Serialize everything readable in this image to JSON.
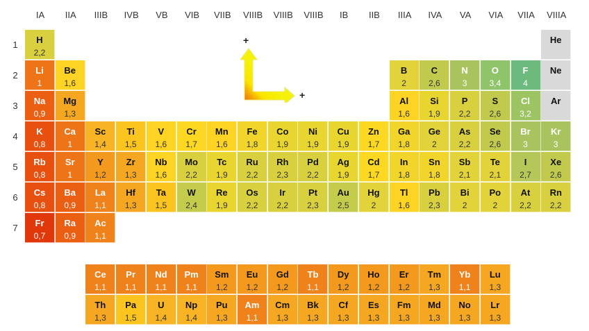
{
  "groups": [
    "IA",
    "IIA",
    "IIIB",
    "IVB",
    "VB",
    "VIB",
    "VIIB",
    "VIIIB",
    "VIIIB",
    "VIIIB",
    "IB",
    "IIB",
    "IIIA",
    "IVA",
    "VA",
    "VIA",
    "VIIA",
    "VIIIA"
  ],
  "periods": [
    "1",
    "2",
    "3",
    "4",
    "5",
    "6",
    "7"
  ],
  "legend": {
    "plus_up": "+",
    "plus_right": "+"
  },
  "elements": [
    {
      "s": "H",
      "v": "2,2",
      "g": 1,
      "p": 1
    },
    {
      "s": "He",
      "v": "",
      "g": 18,
      "p": 1
    },
    {
      "s": "Li",
      "v": "1",
      "g": 1,
      "p": 2
    },
    {
      "s": "Be",
      "v": "1,6",
      "g": 2,
      "p": 2
    },
    {
      "s": "B",
      "v": "2",
      "g": 13,
      "p": 2
    },
    {
      "s": "C",
      "v": "2,6",
      "g": 14,
      "p": 2
    },
    {
      "s": "N",
      "v": "3",
      "g": 15,
      "p": 2
    },
    {
      "s": "O",
      "v": "3,4",
      "g": 16,
      "p": 2
    },
    {
      "s": "F",
      "v": "4",
      "g": 17,
      "p": 2
    },
    {
      "s": "Ne",
      "v": "",
      "g": 18,
      "p": 2
    },
    {
      "s": "Na",
      "v": "0,9",
      "g": 1,
      "p": 3
    },
    {
      "s": "Mg",
      "v": "1,3",
      "g": 2,
      "p": 3
    },
    {
      "s": "Al",
      "v": "1,6",
      "g": 13,
      "p": 3
    },
    {
      "s": "Si",
      "v": "1,9",
      "g": 14,
      "p": 3
    },
    {
      "s": "P",
      "v": "2,2",
      "g": 15,
      "p": 3
    },
    {
      "s": "S",
      "v": "2,6",
      "g": 16,
      "p": 3
    },
    {
      "s": "Cl",
      "v": "3,2",
      "g": 17,
      "p": 3
    },
    {
      "s": "Ar",
      "v": "",
      "g": 18,
      "p": 3
    },
    {
      "s": "K",
      "v": "0,8",
      "g": 1,
      "p": 4
    },
    {
      "s": "Ca",
      "v": "1",
      "g": 2,
      "p": 4
    },
    {
      "s": "Sc",
      "v": "1,4",
      "g": 3,
      "p": 4
    },
    {
      "s": "Ti",
      "v": "1,5",
      "g": 4,
      "p": 4
    },
    {
      "s": "V",
      "v": "1,6",
      "g": 5,
      "p": 4
    },
    {
      "s": "Cr",
      "v": "1,7",
      "g": 6,
      "p": 4
    },
    {
      "s": "Mn",
      "v": "1,6",
      "g": 7,
      "p": 4
    },
    {
      "s": "Fe",
      "v": "1,8",
      "g": 8,
      "p": 4
    },
    {
      "s": "Co",
      "v": "1,9",
      "g": 9,
      "p": 4
    },
    {
      "s": "Ni",
      "v": "1,9",
      "g": 10,
      "p": 4
    },
    {
      "s": "Cu",
      "v": "1,9",
      "g": 11,
      "p": 4
    },
    {
      "s": "Zn",
      "v": "1,7",
      "g": 12,
      "p": 4
    },
    {
      "s": "Ga",
      "v": "1,8",
      "g": 13,
      "p": 4
    },
    {
      "s": "Ge",
      "v": "2",
      "g": 14,
      "p": 4
    },
    {
      "s": "As",
      "v": "2,2",
      "g": 15,
      "p": 4
    },
    {
      "s": "Se",
      "v": "2,6",
      "g": 16,
      "p": 4
    },
    {
      "s": "Br",
      "v": "3",
      "g": 17,
      "p": 4
    },
    {
      "s": "Kr",
      "v": "3",
      "g": 18,
      "p": 4
    },
    {
      "s": "Rb",
      "v": "0,8",
      "g": 1,
      "p": 5
    },
    {
      "s": "Sr",
      "v": "1",
      "g": 2,
      "p": 5
    },
    {
      "s": "Y",
      "v": "1,2",
      "g": 3,
      "p": 5
    },
    {
      "s": "Zr",
      "v": "1,3",
      "g": 4,
      "p": 5
    },
    {
      "s": "Nb",
      "v": "1,6",
      "g": 5,
      "p": 5
    },
    {
      "s": "Mo",
      "v": "2,2",
      "g": 6,
      "p": 5
    },
    {
      "s": "Tc",
      "v": "1,9",
      "g": 7,
      "p": 5
    },
    {
      "s": "Ru",
      "v": "2,2",
      "g": 8,
      "p": 5
    },
    {
      "s": "Rh",
      "v": "2,3",
      "g": 9,
      "p": 5
    },
    {
      "s": "Pd",
      "v": "2,2",
      "g": 10,
      "p": 5
    },
    {
      "s": "Ag",
      "v": "1,9",
      "g": 11,
      "p": 5
    },
    {
      "s": "Cd",
      "v": "1,7",
      "g": 12,
      "p": 5
    },
    {
      "s": "In",
      "v": "1,8",
      "g": 13,
      "p": 5
    },
    {
      "s": "Sn",
      "v": "1,8",
      "g": 14,
      "p": 5
    },
    {
      "s": "Sb",
      "v": "2,1",
      "g": 15,
      "p": 5
    },
    {
      "s": "Te",
      "v": "2,1",
      "g": 16,
      "p": 5
    },
    {
      "s": "I",
      "v": "2,7",
      "g": 17,
      "p": 5
    },
    {
      "s": "Xe",
      "v": "2,6",
      "g": 18,
      "p": 5
    },
    {
      "s": "Cs",
      "v": "0,8",
      "g": 1,
      "p": 6
    },
    {
      "s": "Ba",
      "v": "0,9",
      "g": 2,
      "p": 6
    },
    {
      "s": "La",
      "v": "1,1",
      "g": 3,
      "p": 6
    },
    {
      "s": "Hf",
      "v": "1,3",
      "g": 4,
      "p": 6
    },
    {
      "s": "Ta",
      "v": "1,5",
      "g": 5,
      "p": 6
    },
    {
      "s": "W",
      "v": "2,4",
      "g": 6,
      "p": 6
    },
    {
      "s": "Re",
      "v": "1,9",
      "g": 7,
      "p": 6
    },
    {
      "s": "Os",
      "v": "2,2",
      "g": 8,
      "p": 6
    },
    {
      "s": "Ir",
      "v": "2,2",
      "g": 9,
      "p": 6
    },
    {
      "s": "Pt",
      "v": "2,3",
      "g": 10,
      "p": 6
    },
    {
      "s": "Au",
      "v": "2,5",
      "g": 11,
      "p": 6
    },
    {
      "s": "Hg",
      "v": "2",
      "g": 12,
      "p": 6
    },
    {
      "s": "Tl",
      "v": "1,6",
      "g": 13,
      "p": 6
    },
    {
      "s": "Pb",
      "v": "2,3",
      "g": 14,
      "p": 6
    },
    {
      "s": "Bi",
      "v": "2",
      "g": 15,
      "p": 6
    },
    {
      "s": "Po",
      "v": "2",
      "g": 16,
      "p": 6
    },
    {
      "s": "At",
      "v": "2,2",
      "g": 17,
      "p": 6
    },
    {
      "s": "Rn",
      "v": "2,2",
      "g": 18,
      "p": 6
    },
    {
      "s": "Fr",
      "v": "0,7",
      "g": 1,
      "p": 7
    },
    {
      "s": "Ra",
      "v": "0,9",
      "g": 2,
      "p": 7
    },
    {
      "s": "Ac",
      "v": "1,1",
      "g": 3,
      "p": 7
    }
  ],
  "lanthanides": [
    {
      "s": "Ce",
      "v": "1,1"
    },
    {
      "s": "Pr",
      "v": "1,1"
    },
    {
      "s": "Nd",
      "v": "1,1"
    },
    {
      "s": "Pm",
      "v": "1,1"
    },
    {
      "s": "Sm",
      "v": "1,2"
    },
    {
      "s": "Eu",
      "v": "1,2"
    },
    {
      "s": "Gd",
      "v": "1,2"
    },
    {
      "s": "Tb",
      "v": "1,1"
    },
    {
      "s": "Dy",
      "v": "1,2"
    },
    {
      "s": "Ho",
      "v": "1,2"
    },
    {
      "s": "Er",
      "v": "1,2"
    },
    {
      "s": "Tm",
      "v": "1,3"
    },
    {
      "s": "Yb",
      "v": "1,1"
    },
    {
      "s": "Lu",
      "v": "1,3"
    }
  ],
  "actinides": [
    {
      "s": "Th",
      "v": "1,3"
    },
    {
      "s": "Pa",
      "v": "1,5"
    },
    {
      "s": "U",
      "v": "1,4"
    },
    {
      "s": "Np",
      "v": "1,4"
    },
    {
      "s": "Pu",
      "v": "1,3"
    },
    {
      "s": "Am",
      "v": "1,1"
    },
    {
      "s": "Cm",
      "v": "1,3"
    },
    {
      "s": "Bk",
      "v": "1,3"
    },
    {
      "s": "Cf",
      "v": "1,3"
    },
    {
      "s": "Es",
      "v": "1,3"
    },
    {
      "s": "Fm",
      "v": "1,3"
    },
    {
      "s": "Md",
      "v": "1,3"
    },
    {
      "s": "No",
      "v": "1,3"
    },
    {
      "s": "Lr",
      "v": "1,3"
    }
  ],
  "colors": {
    "noble_gas": "#d9d9d9",
    "low": "#e03a0c",
    "mid": "#fdd823",
    "high": "#6dbb7a"
  }
}
